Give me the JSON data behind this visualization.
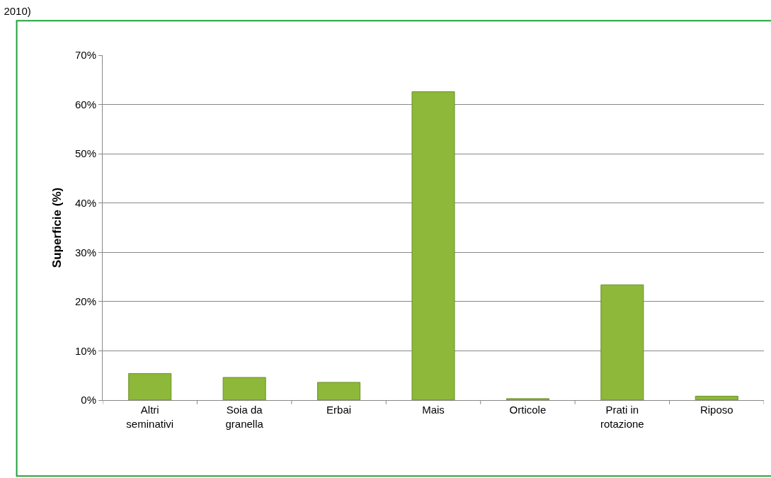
{
  "chart_data": {
    "type": "bar",
    "title": "2010)",
    "ylabel": "Superficie (%)",
    "categories": [
      "Altri seminativi",
      "Soia da granella",
      "Erbai",
      "Mais",
      "Orticole",
      "Prati in rotazione",
      "Riposo"
    ],
    "values": [
      5.4,
      4.6,
      3.6,
      62.6,
      0.3,
      23.4,
      0.8
    ],
    "color": "#8db83a",
    "ylim": [
      0,
      70
    ],
    "yticks": [
      {
        "value": 0,
        "label": "0%"
      },
      {
        "value": 10,
        "label": "10%"
      },
      {
        "value": 20,
        "label": "20%"
      },
      {
        "value": 30,
        "label": "30%"
      },
      {
        "value": 40,
        "label": "40%"
      },
      {
        "value": 50,
        "label": "50%"
      },
      {
        "value": 60,
        "label": "60%"
      },
      {
        "value": 70,
        "label": "70%"
      }
    ],
    "grid": "y",
    "legend": false
  }
}
